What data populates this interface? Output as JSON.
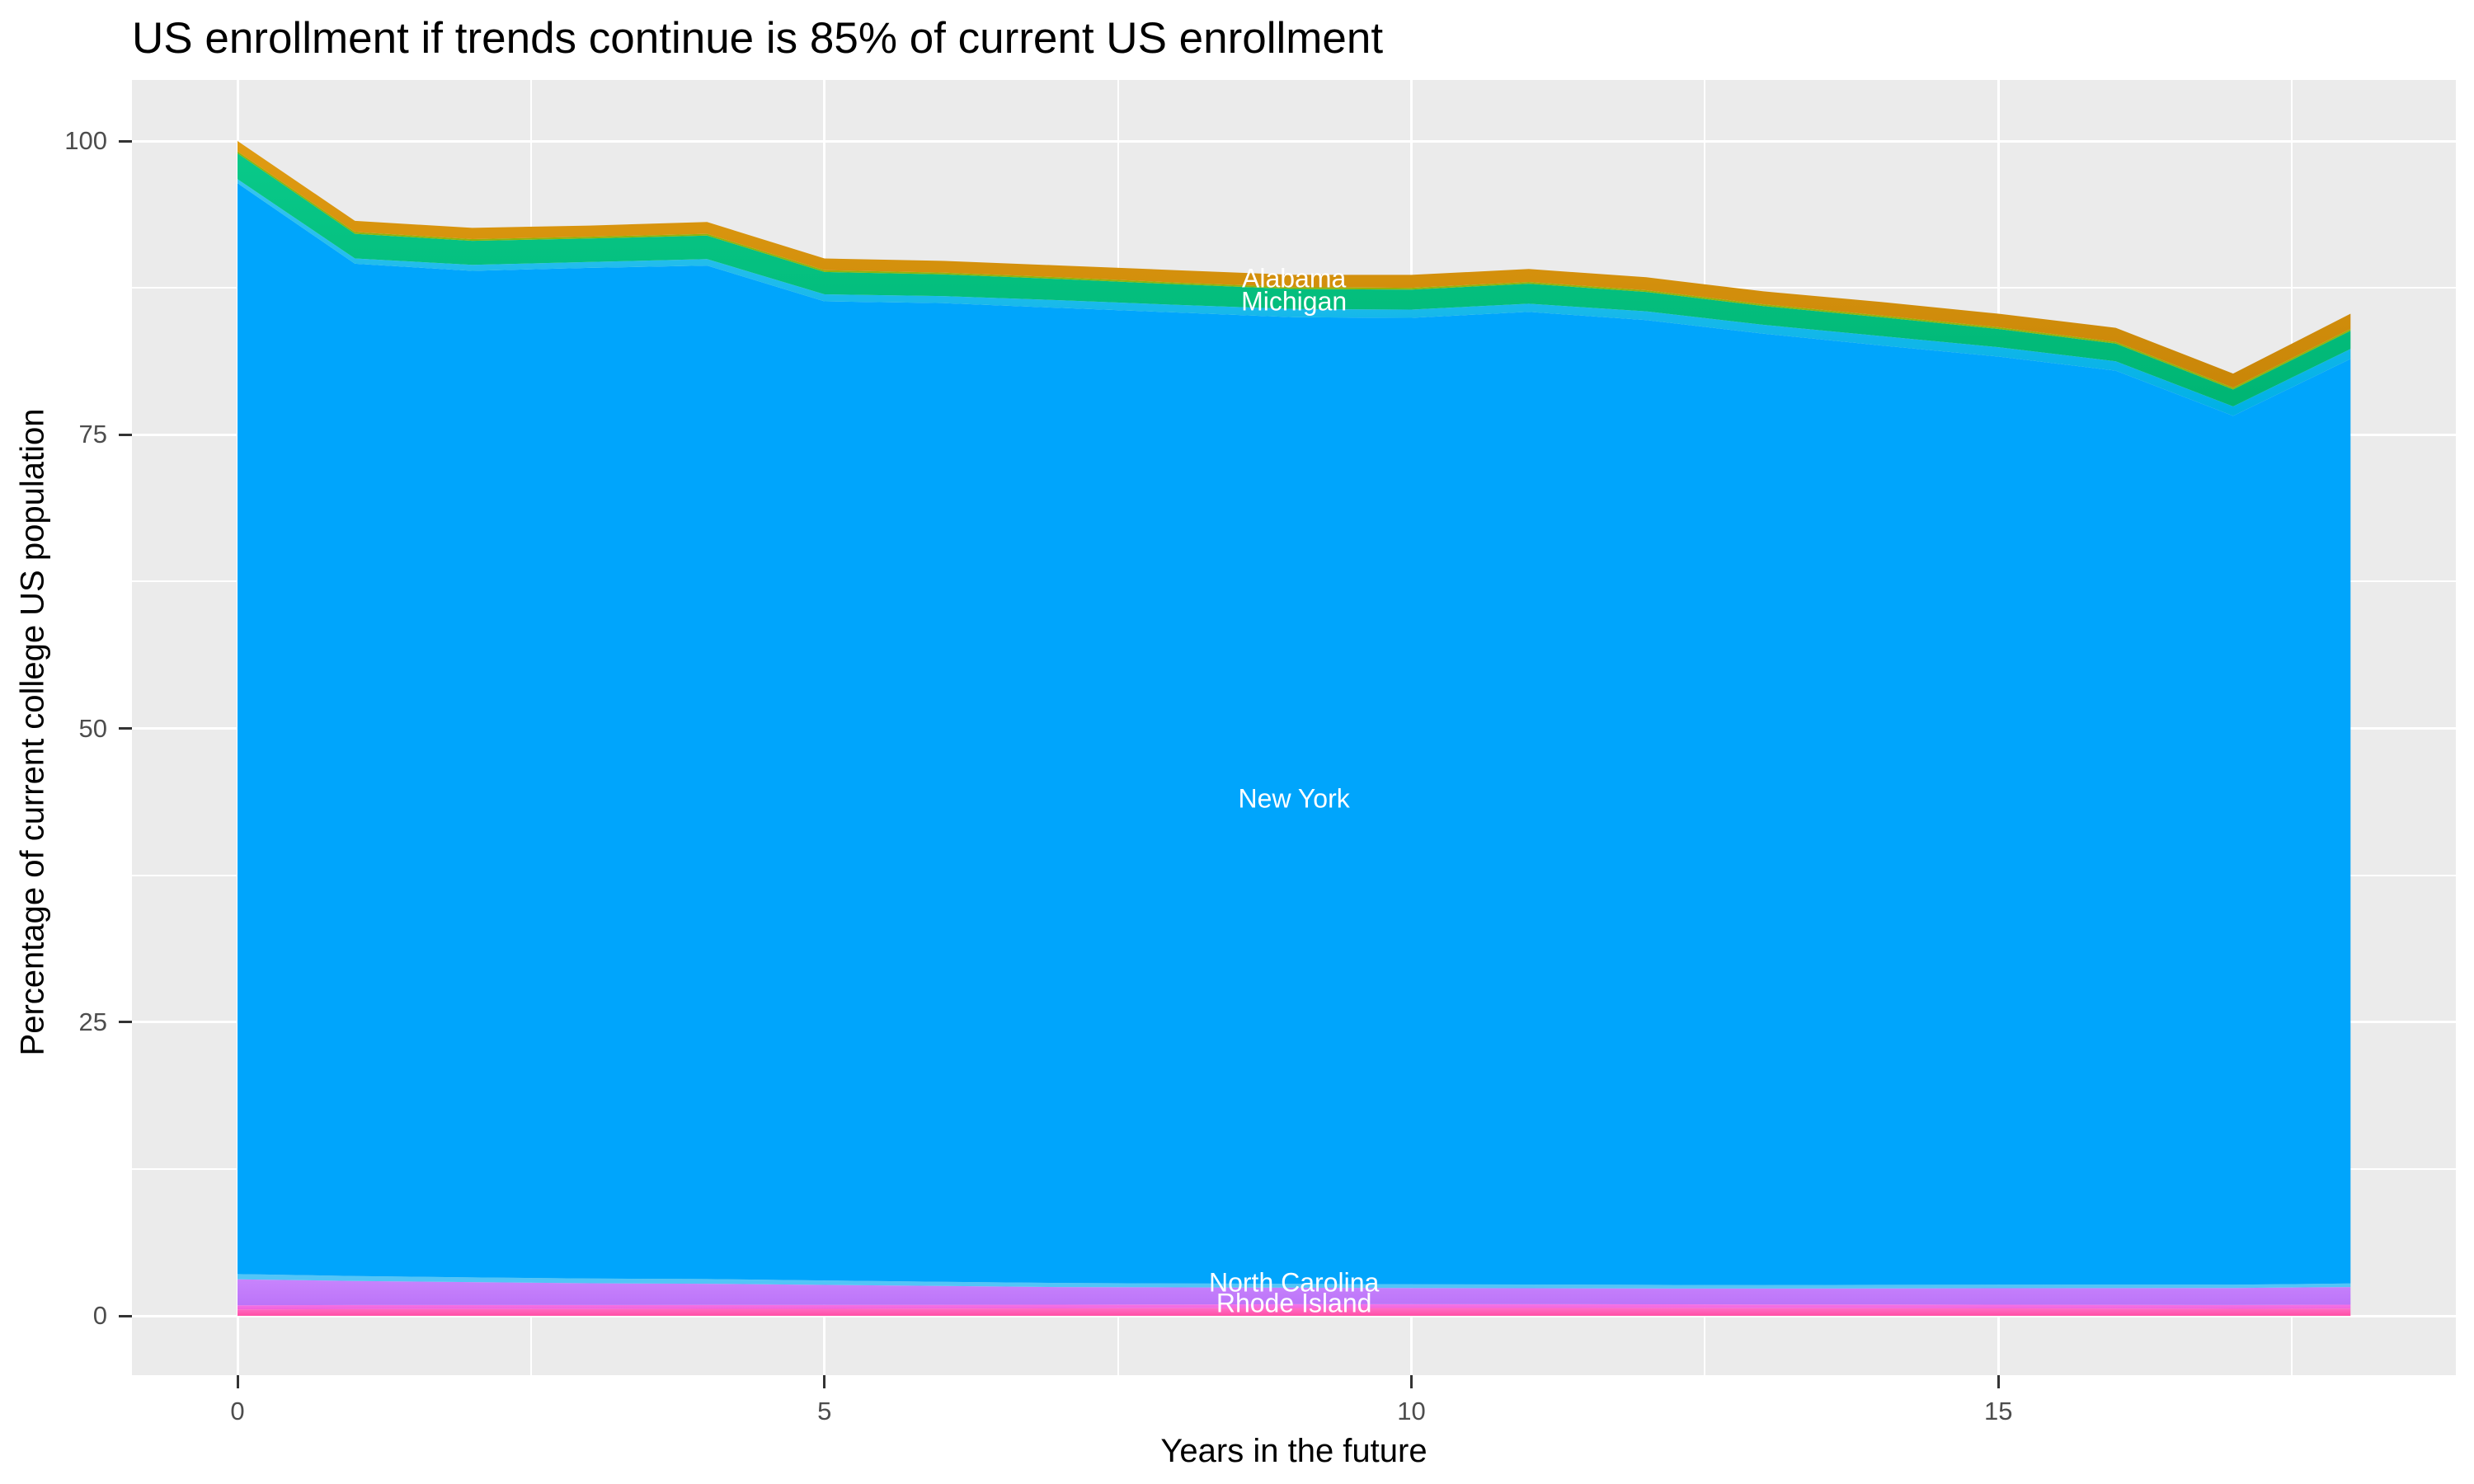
{
  "title": "US enrollment if trends continue is 85% of current US enrollment",
  "axes": {
    "x_title": "Years in the future",
    "y_title": "Percentage of current college US population",
    "x_ticks": [
      0,
      5,
      10,
      15
    ],
    "x_minor_ticks": [
      2.5,
      7.5,
      12.5,
      17.5
    ],
    "y_ticks": [
      0,
      25,
      50,
      75,
      100
    ],
    "y_minor_ticks": [
      12.5,
      37.5,
      62.5,
      87.5
    ]
  },
  "colors": {
    "panel_background": "#EBEBEB",
    "gridline": "#FFFFFF",
    "tick_text": "#4D4D4D",
    "tick_mark": "#333333",
    "title_text": "#000000",
    "state_label_text": "#FFFFFF"
  },
  "chart_data": {
    "type": "area",
    "stacked": true,
    "grid": true,
    "legend": "none",
    "x": [
      0,
      1,
      2,
      3,
      4,
      5,
      6,
      7,
      8,
      9,
      10,
      11,
      12,
      13,
      14,
      15,
      16,
      17,
      18
    ],
    "x_range": [
      0,
      18
    ],
    "y_range": [
      0,
      100
    ],
    "totals": [
      100,
      93.2,
      92.6,
      92.8,
      93.1,
      90.0,
      89.8,
      89.4,
      89.0,
      88.6,
      88.6,
      89.1,
      88.4,
      87.2,
      86.3,
      85.3,
      84.1,
      80.2,
      85.3
    ],
    "series": [
      {
        "name": "Alabama",
        "labeled": true,
        "color": "#D6910E",
        "gradient": [
          "#E09C12",
          "#C98608"
        ],
        "values": [
          0.9,
          0.95,
          0.95,
          0.95,
          1.0,
          1.0,
          1.0,
          1.0,
          1.05,
          1.05,
          1.1,
          1.1,
          1.1,
          1.1,
          1.15,
          1.15,
          1.2,
          1.2,
          1.3
        ]
      },
      {
        "name": "unlabeled states (yellow-green band)",
        "labeled": false,
        "color": "#8FB40C",
        "values": [
          0.15,
          0.15,
          0.15,
          0.15,
          0.15,
          0.15,
          0.15,
          0.15,
          0.15,
          0.15,
          0.15,
          0.15,
          0.15,
          0.15,
          0.15,
          0.15,
          0.15,
          0.15,
          0.15
        ]
      },
      {
        "name": "Michigan",
        "labeled": true,
        "color": "#00BF7F",
        "gradient": [
          "#09C98A",
          "#00B573"
        ],
        "values": [
          2.2,
          2.1,
          2.05,
          2.0,
          2.0,
          1.9,
          1.85,
          1.8,
          1.75,
          1.7,
          1.7,
          1.7,
          1.65,
          1.6,
          1.6,
          1.55,
          1.5,
          1.45,
          1.55
        ]
      },
      {
        "name": "unlabeled states (azure band)",
        "labeled": false,
        "color": "#14B8EA",
        "gradient": [
          "#35C4F0",
          "#00B0E6"
        ],
        "values": [
          0.35,
          0.45,
          0.5,
          0.5,
          0.55,
          0.6,
          0.6,
          0.65,
          0.65,
          0.7,
          0.7,
          0.7,
          0.75,
          0.75,
          0.8,
          0.8,
          0.8,
          0.8,
          0.85
        ]
      },
      {
        "name": "New York",
        "labeled": true,
        "color": "#00A5FC",
        "values": [
          92.85,
          86.16,
          85.68,
          86.03,
          86.27,
          83.34,
          83.3,
          83.0,
          82.64,
          82.28,
          82.26,
          82.78,
          82.11,
          80.98,
          79.96,
          79.0,
          77.79,
          73.95,
          78.7
        ]
      },
      {
        "name": "unlabeled states (light-blue band)",
        "labeled": false,
        "color": "#52C5F7",
        "values": [
          0.45,
          0.42,
          0.4,
          0.4,
          0.4,
          0.38,
          0.36,
          0.35,
          0.34,
          0.33,
          0.32,
          0.32,
          0.31,
          0.3,
          0.3,
          0.3,
          0.3,
          0.28,
          0.3
        ]
      },
      {
        "name": "North Carolina",
        "labeled": true,
        "color": "#C37DFC",
        "gradient": [
          "#C884FD",
          "#BC74F8"
        ],
        "values": [
          2.2,
          2.05,
          1.95,
          1.85,
          1.8,
          1.7,
          1.6,
          1.5,
          1.45,
          1.4,
          1.38,
          1.36,
          1.35,
          1.35,
          1.38,
          1.4,
          1.42,
          1.45,
          1.5
        ]
      },
      {
        "name": "unlabeled states (magenta band)",
        "labeled": false,
        "color": "#EE61EC",
        "gradient": [
          "#F575E8",
          "#F261D9"
        ],
        "values": [
          0.35,
          0.35,
          0.34,
          0.34,
          0.33,
          0.33,
          0.32,
          0.32,
          0.32,
          0.32,
          0.32,
          0.32,
          0.32,
          0.32,
          0.32,
          0.32,
          0.32,
          0.32,
          0.33
        ]
      },
      {
        "name": "Rhode Island",
        "labeled": true,
        "color": "#FF5FB4",
        "gradient": [
          "#FF6EC7",
          "#FF4FA4"
        ],
        "values": [
          0.55,
          0.57,
          0.58,
          0.58,
          0.6,
          0.6,
          0.62,
          0.63,
          0.65,
          0.67,
          0.67,
          0.67,
          0.66,
          0.65,
          0.64,
          0.63,
          0.62,
          0.6,
          0.62
        ]
      }
    ],
    "annotations": [
      {
        "text": "Alabama",
        "x": 9,
        "y": 88.3
      },
      {
        "text": "Michigan",
        "x": 9,
        "y": 86.3
      },
      {
        "text": "New York",
        "x": 9,
        "y": 44.0
      },
      {
        "text": "North Carolina",
        "x": 9,
        "y": 2.8
      },
      {
        "text": "Rhode Island",
        "x": 9,
        "y": 1.05
      }
    ]
  }
}
